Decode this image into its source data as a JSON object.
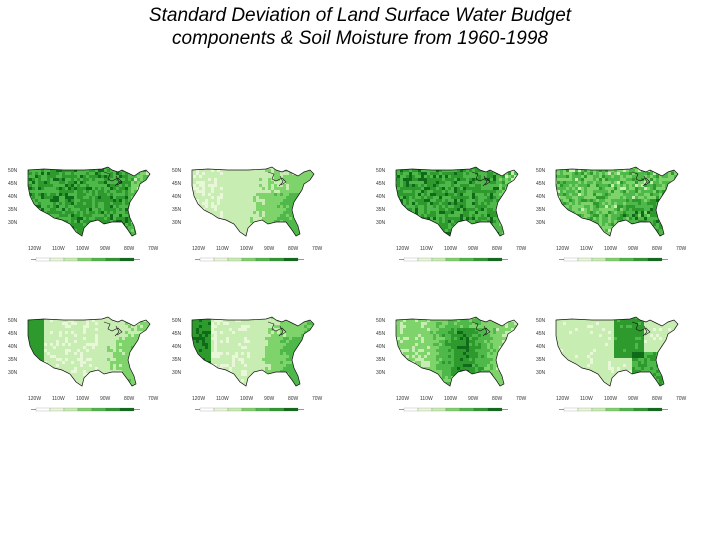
{
  "slide": {
    "title_line1": "Standard Deviation of Land Surface Water Budget",
    "title_line2": "components & Soil Moisture from 1960-1998"
  },
  "panels": [
    {
      "id": "p1",
      "title": "",
      "pattern": "uniform-dense"
    },
    {
      "id": "p2",
      "title": "",
      "pattern": "southeast-dark-west-light"
    },
    {
      "id": "p3",
      "title": "",
      "pattern": "uniform-dense"
    },
    {
      "id": "p4",
      "title": "",
      "pattern": "patchy-medium"
    },
    {
      "id": "p5",
      "title": "",
      "pattern": "east-and-northwest-coast"
    },
    {
      "id": "p6",
      "title": "",
      "pattern": "east-dark-northwest-dark"
    },
    {
      "id": "p7",
      "title": "",
      "pattern": "central-dark"
    },
    {
      "id": "p8",
      "title": "",
      "pattern": "midwest-and-southeast"
    }
  ],
  "lat_labels": [
    "50N",
    "45N",
    "40N",
    "35N",
    "30N"
  ],
  "lon_labels": [
    "120W",
    "110W",
    "100W",
    "90W",
    "80W",
    "70W"
  ],
  "colors": {
    "land_light": "#e9f7d9",
    "land_mid": "#7fd36b",
    "land_dark": "#2e9a2e",
    "land_darkest": "#0f6b1a",
    "coast": "#111111"
  }
}
